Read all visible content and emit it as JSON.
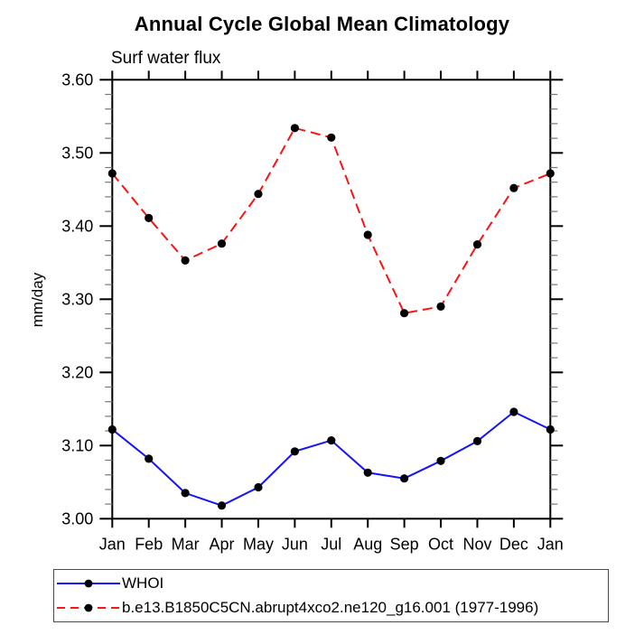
{
  "chart_data": {
    "type": "line",
    "title": "Annual Cycle Global Mean Climatology",
    "subtitle": "Surf water flux",
    "ylabel": "mm/day",
    "xlabel": "",
    "categories": [
      "Jan",
      "Feb",
      "Mar",
      "Apr",
      "May",
      "Jun",
      "Jul",
      "Aug",
      "Sep",
      "Oct",
      "Nov",
      "Dec",
      "Jan"
    ],
    "ylim": [
      3.0,
      3.6
    ],
    "ytick_major": 0.1,
    "ytick_minor": 0.02,
    "ytick_label_format": 2,
    "grid": false,
    "frame": "box",
    "legend_position": "bottom-left",
    "axis_color": "#000000",
    "minor_tick_color": "#777777",
    "series": [
      {
        "name": "WHOI",
        "color": "#1414fa",
        "line_style": "solid",
        "marker": "circle",
        "marker_color": "#000000",
        "values": [
          3.122,
          3.082,
          3.035,
          3.018,
          3.043,
          3.092,
          3.107,
          3.063,
          3.055,
          3.079,
          3.106,
          3.146,
          3.122
        ]
      },
      {
        "name": "b.e13.B1850C5CN.abrupt4xco2.ne120_g16.001 (1977-1996)",
        "color": "#fa1414",
        "line_style": "dashed",
        "marker": "circle",
        "marker_color": "#000000",
        "values": [
          3.472,
          3.411,
          3.353,
          3.376,
          3.444,
          3.534,
          3.521,
          3.388,
          3.281,
          3.29,
          3.375,
          3.452,
          3.472
        ]
      }
    ]
  }
}
